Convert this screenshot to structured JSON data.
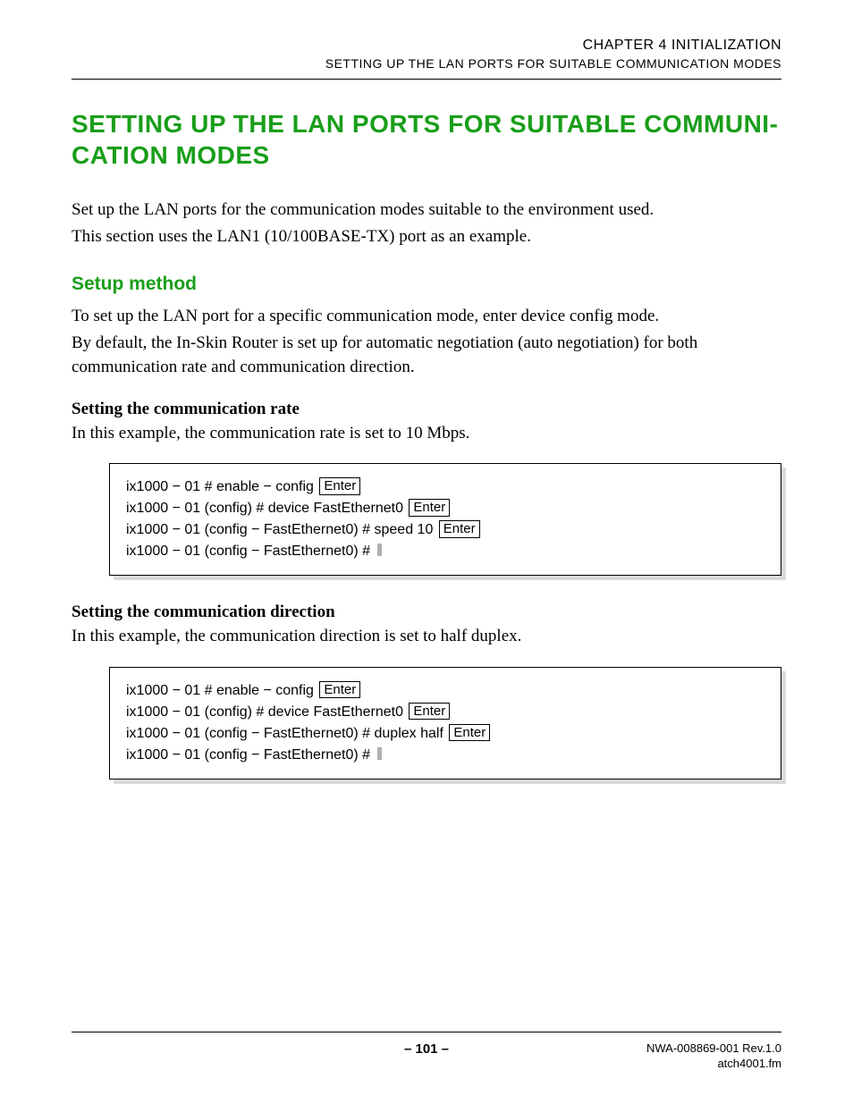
{
  "header": {
    "chapter": "CHAPTER 4   INITIALIZATION",
    "section": "SETTING UP THE LAN PORTS FOR SUITABLE COMMUNICATION MODES"
  },
  "title": "SETTING UP THE LAN PORTS FOR SUITABLE COMMUNI-CATION MODES",
  "intro": {
    "p1": "Set up the LAN ports for the communication modes suitable to the environment used.",
    "p2": "This section uses the LAN1 (10/100BASE-TX) port as an example."
  },
  "setup": {
    "heading": "Setup method",
    "p1": "To set up the LAN port for a specific communication mode, enter device config mode.",
    "p2": "By default, the In-Skin Router is set up for automatic negotiation (auto negotiation) for both communication rate and communication direction."
  },
  "rate": {
    "heading": "Setting the communication rate",
    "desc": "In this example, the communication rate is set to 10 Mbps.",
    "lines": [
      {
        "text": "ix1000 − 01 # enable − config",
        "key": "Enter"
      },
      {
        "text": "ix1000 − 01 (config) # device FastEthernet0",
        "key": "Enter"
      },
      {
        "text": "ix1000 − 01 (config − FastEthernet0) # speed 10",
        "key": "Enter"
      },
      {
        "text": "ix1000 − 01 (config − FastEthernet0) #",
        "cursor": true
      }
    ]
  },
  "direction": {
    "heading": "Setting the communication direction",
    "desc": "In this example, the communication direction is set to half duplex.",
    "lines": [
      {
        "text": "ix1000 − 01 # enable − config",
        "key": "Enter"
      },
      {
        "text": "ix1000 − 01 (config) # device FastEthernet0",
        "key": "Enter"
      },
      {
        "text": "ix1000 − 01 (config − FastEthernet0) # duplex half",
        "key": "Enter"
      },
      {
        "text": "ix1000 − 01 (config − FastEthernet0) #",
        "cursor": true
      }
    ]
  },
  "keycap_label": "Enter",
  "footer": {
    "page": "– 101 –",
    "doc": "NWA-008869-001 Rev.1.0",
    "file": "atch4001.fm"
  },
  "colors": {
    "heading_green": "#1a9e1a",
    "shadow_gray": "#d9d9d9",
    "cursor_gray": "#b0b0b0",
    "text": "#000000",
    "bg": "#ffffff"
  },
  "typography": {
    "body_font": "Times New Roman",
    "heading_font": "Arial",
    "code_font": "Arial",
    "title_size_pt": 21,
    "sub_size_pt": 16,
    "body_size_pt": 14,
    "code_size_pt": 12
  }
}
